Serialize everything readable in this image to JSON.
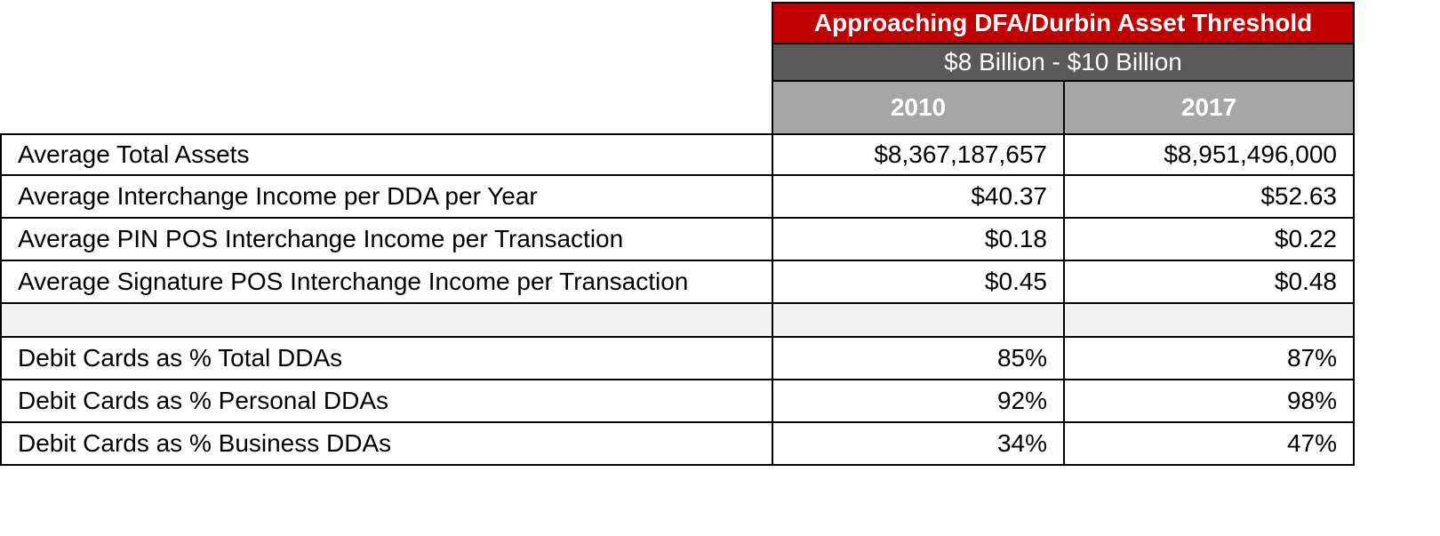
{
  "chart_data": {
    "type": "table",
    "title": "Approaching DFA/Durbin Asset Threshold",
    "subtitle": "$8 Billion - $10 Billion",
    "columns": [
      "2010",
      "2017"
    ],
    "rows": [
      {
        "label": "Average Total Assets",
        "values": [
          "$8,367,187,657",
          "$8,951,496,000"
        ]
      },
      {
        "label": "Average Interchange Income per DDA per Year",
        "values": [
          "$40.37",
          "$52.63"
        ]
      },
      {
        "label": "Average PIN POS Interchange Income per Transaction",
        "values": [
          "$0.18",
          "$0.22"
        ]
      },
      {
        "label": "Average Signature POS Interchange Income per Transaction",
        "values": [
          "$0.45",
          "$0.48"
        ]
      },
      {
        "label": "",
        "values": [
          "",
          ""
        ],
        "spacer": true
      },
      {
        "label": "Debit Cards as % Total DDAs",
        "values": [
          "85%",
          "87%"
        ]
      },
      {
        "label": "Debit Cards as % Personal DDAs",
        "values": [
          "92%",
          "98%"
        ]
      },
      {
        "label": "Debit Cards as % Business DDAs",
        "values": [
          "34%",
          "47%"
        ]
      }
    ]
  },
  "colors": {
    "title_bg": "#c00000",
    "subtitle_bg": "#595959",
    "year_header_bg": "#a6a6a6",
    "spacer_bg": "#f2f2f2"
  }
}
